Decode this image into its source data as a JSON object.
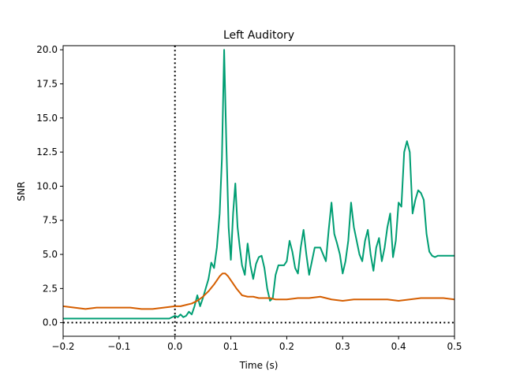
{
  "chart_data": {
    "type": "line",
    "title": "Left Auditory",
    "xlabel": "Time (s)",
    "ylabel": "SNR",
    "xlim": [
      -0.2,
      0.5
    ],
    "ylim": [
      -1.0,
      20.3
    ],
    "grid": false,
    "legend": "none",
    "xticks": [
      -0.2,
      -0.1,
      0.0,
      0.1,
      0.2,
      0.3,
      0.4,
      0.5
    ],
    "xtick_labels": [
      "−0.2",
      "−0.1",
      "0.0",
      "0.1",
      "0.2",
      "0.3",
      "0.4",
      "0.5"
    ],
    "yticks": [
      0.0,
      2.5,
      5.0,
      7.5,
      10.0,
      12.5,
      15.0,
      17.5,
      20.0
    ],
    "ytick_labels": [
      "0.0",
      "2.5",
      "5.0",
      "7.5",
      "10.0",
      "12.5",
      "15.0",
      "17.5",
      "20.0"
    ],
    "reference_lines": [
      {
        "orientation": "vertical",
        "value": 0.0,
        "style": "dotted",
        "color": "#000000"
      },
      {
        "orientation": "horizontal",
        "value": 0.0,
        "style": "dotted",
        "color": "#000000"
      }
    ],
    "series": [
      {
        "color": "#009e73",
        "x": [
          -0.2,
          -0.15,
          -0.1,
          -0.05,
          -0.01,
          0.0,
          0.005,
          0.01,
          0.015,
          0.02,
          0.025,
          0.03,
          0.035,
          0.04,
          0.045,
          0.05,
          0.055,
          0.06,
          0.065,
          0.07,
          0.075,
          0.08,
          0.084,
          0.088,
          0.092,
          0.096,
          0.1,
          0.104,
          0.108,
          0.112,
          0.116,
          0.12,
          0.125,
          0.13,
          0.135,
          0.14,
          0.145,
          0.15,
          0.155,
          0.16,
          0.165,
          0.17,
          0.175,
          0.18,
          0.185,
          0.19,
          0.195,
          0.2,
          0.205,
          0.21,
          0.215,
          0.22,
          0.225,
          0.23,
          0.235,
          0.24,
          0.245,
          0.25,
          0.255,
          0.26,
          0.265,
          0.27,
          0.275,
          0.28,
          0.285,
          0.29,
          0.295,
          0.3,
          0.305,
          0.31,
          0.315,
          0.32,
          0.325,
          0.33,
          0.335,
          0.34,
          0.345,
          0.35,
          0.355,
          0.36,
          0.365,
          0.37,
          0.375,
          0.38,
          0.385,
          0.39,
          0.395,
          0.4,
          0.405,
          0.41,
          0.415,
          0.42,
          0.425,
          0.43,
          0.435,
          0.44,
          0.445,
          0.45,
          0.455,
          0.46,
          0.465,
          0.47,
          0.475,
          0.48,
          0.485,
          0.49,
          0.495,
          0.5
        ],
        "y": [
          0.3,
          0.3,
          0.3,
          0.3,
          0.3,
          0.5,
          0.4,
          0.6,
          0.4,
          0.5,
          0.8,
          0.6,
          1.2,
          2.0,
          1.2,
          1.8,
          2.5,
          3.2,
          4.4,
          4.0,
          5.5,
          8.0,
          12.0,
          20.0,
          13.0,
          7.0,
          4.6,
          8.0,
          10.2,
          7.0,
          5.5,
          4.2,
          3.5,
          5.8,
          4.2,
          3.2,
          4.3,
          4.8,
          4.9,
          4.0,
          2.5,
          1.6,
          1.8,
          3.5,
          4.2,
          4.2,
          4.2,
          4.5,
          6.0,
          5.2,
          4.0,
          3.6,
          5.5,
          6.8,
          5.0,
          3.5,
          4.5,
          5.5,
          5.5,
          5.5,
          5.0,
          4.5,
          6.8,
          8.8,
          6.5,
          5.8,
          5.0,
          3.6,
          4.5,
          6.0,
          8.8,
          7.0,
          6.0,
          5.0,
          4.5,
          6.0,
          6.8,
          5.0,
          3.8,
          5.5,
          6.2,
          4.5,
          5.5,
          7.0,
          8.0,
          4.8,
          6.0,
          8.8,
          8.5,
          12.5,
          13.3,
          12.5,
          8.0,
          9.0,
          9.7,
          9.5,
          9.0,
          6.5,
          5.2,
          4.9,
          4.8,
          4.9,
          4.9,
          4.9,
          4.9,
          4.9,
          4.9,
          4.9
        ]
      },
      {
        "color": "#d55e00",
        "x": [
          -0.2,
          -0.18,
          -0.16,
          -0.14,
          -0.12,
          -0.1,
          -0.08,
          -0.06,
          -0.04,
          -0.02,
          0.0,
          0.01,
          0.02,
          0.03,
          0.04,
          0.05,
          0.06,
          0.07,
          0.08,
          0.085,
          0.09,
          0.095,
          0.1,
          0.11,
          0.12,
          0.13,
          0.14,
          0.15,
          0.16,
          0.17,
          0.18,
          0.19,
          0.2,
          0.22,
          0.24,
          0.26,
          0.28,
          0.3,
          0.32,
          0.34,
          0.36,
          0.38,
          0.4,
          0.42,
          0.44,
          0.46,
          0.48,
          0.5
        ],
        "y": [
          1.2,
          1.1,
          1.0,
          1.1,
          1.1,
          1.1,
          1.1,
          1.0,
          1.0,
          1.1,
          1.2,
          1.2,
          1.3,
          1.4,
          1.6,
          1.9,
          2.3,
          2.8,
          3.4,
          3.6,
          3.6,
          3.4,
          3.1,
          2.5,
          2.0,
          1.9,
          1.9,
          1.8,
          1.8,
          1.8,
          1.7,
          1.7,
          1.7,
          1.8,
          1.8,
          1.9,
          1.7,
          1.6,
          1.7,
          1.7,
          1.7,
          1.7,
          1.6,
          1.7,
          1.8,
          1.8,
          1.8,
          1.7
        ]
      }
    ]
  }
}
